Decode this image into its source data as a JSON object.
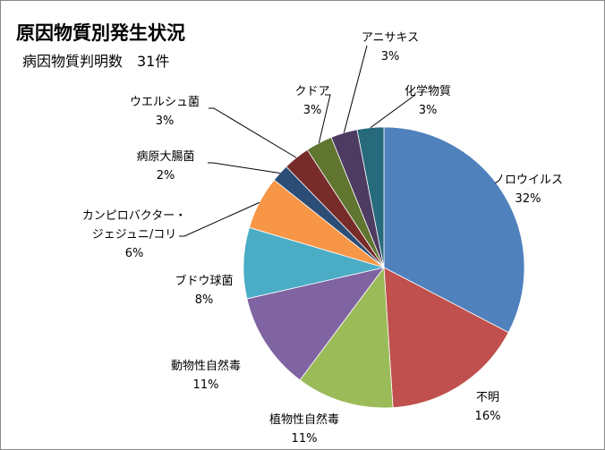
{
  "chart_data": {
    "type": "pie",
    "title": "原因物質別発生状況",
    "subtitle": "病因物質判明数　31件",
    "slices": [
      {
        "label": "ノロウイルス",
        "value": 32,
        "value_label": "32%",
        "color": "#4F81BD"
      },
      {
        "label": "不明",
        "value": 16,
        "value_label": "16%",
        "color": "#C0504D"
      },
      {
        "label": "植物性自然毒",
        "value": 11,
        "value_label": "11%",
        "color": "#9BBB59"
      },
      {
        "label": "動物性自然毒",
        "value": 11,
        "value_label": "11%",
        "color": "#8064A2"
      },
      {
        "label": "ブドウ球菌",
        "value": 8,
        "value_label": "8%",
        "color": "#4BACC6"
      },
      {
        "label": [
          "カンピロバクター・",
          "ジェジュニ/コリ"
        ],
        "value": 6,
        "value_label": "6%",
        "color": "#F79646"
      },
      {
        "label": "病原大腸菌",
        "value": 2,
        "value_label": "2%",
        "color": "#2C4D75"
      },
      {
        "label": "ウエルシュ菌",
        "value": 3,
        "value_label": "3%",
        "color": "#772C2A"
      },
      {
        "label": "クドア",
        "value": 3,
        "value_label": "3%",
        "color": "#5F7530"
      },
      {
        "label": "アニサキス",
        "value": 3,
        "value_label": "3%",
        "color": "#4D3B62"
      },
      {
        "label": "化学物質",
        "value": 3,
        "value_label": "3%",
        "color": "#276A7C"
      }
    ],
    "start_angle": "top",
    "direction": "clockwise",
    "legend": "none"
  }
}
